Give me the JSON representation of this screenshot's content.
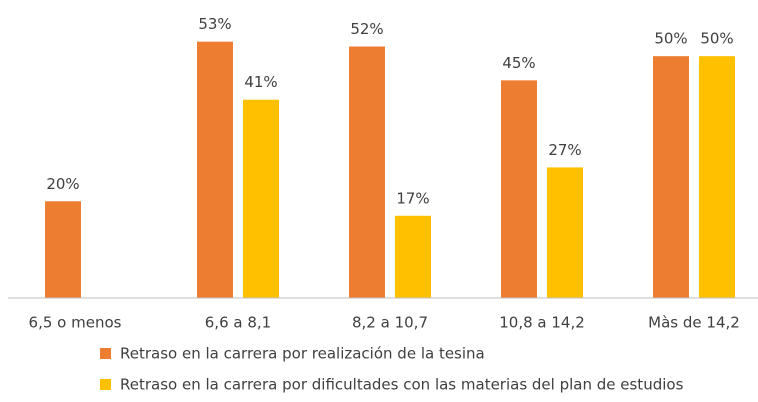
{
  "chart_data": {
    "type": "bar",
    "categories": [
      "6,5 o menos",
      "6,6 a 8,1",
      "8,2 a 10,7",
      "10,8 a 14,2",
      "Màs de 14,2"
    ],
    "series": [
      {
        "name": "Retraso en la carrera por realización de la tesina",
        "color": "#ed7d31",
        "values": [
          20,
          53,
          52,
          45,
          50
        ],
        "value_labels": [
          "20%",
          "53%",
          "52%",
          "45%",
          "50%"
        ]
      },
      {
        "name": "Retraso en la carrera por dificultades con las materias del plan de estudios",
        "color": "#ffc000",
        "values": [
          null,
          41,
          17,
          27,
          50
        ],
        "value_labels": [
          null,
          "41%",
          "17%",
          "27%",
          "50%"
        ]
      }
    ],
    "ylim": [
      0,
      55
    ],
    "legend": "bottom"
  }
}
